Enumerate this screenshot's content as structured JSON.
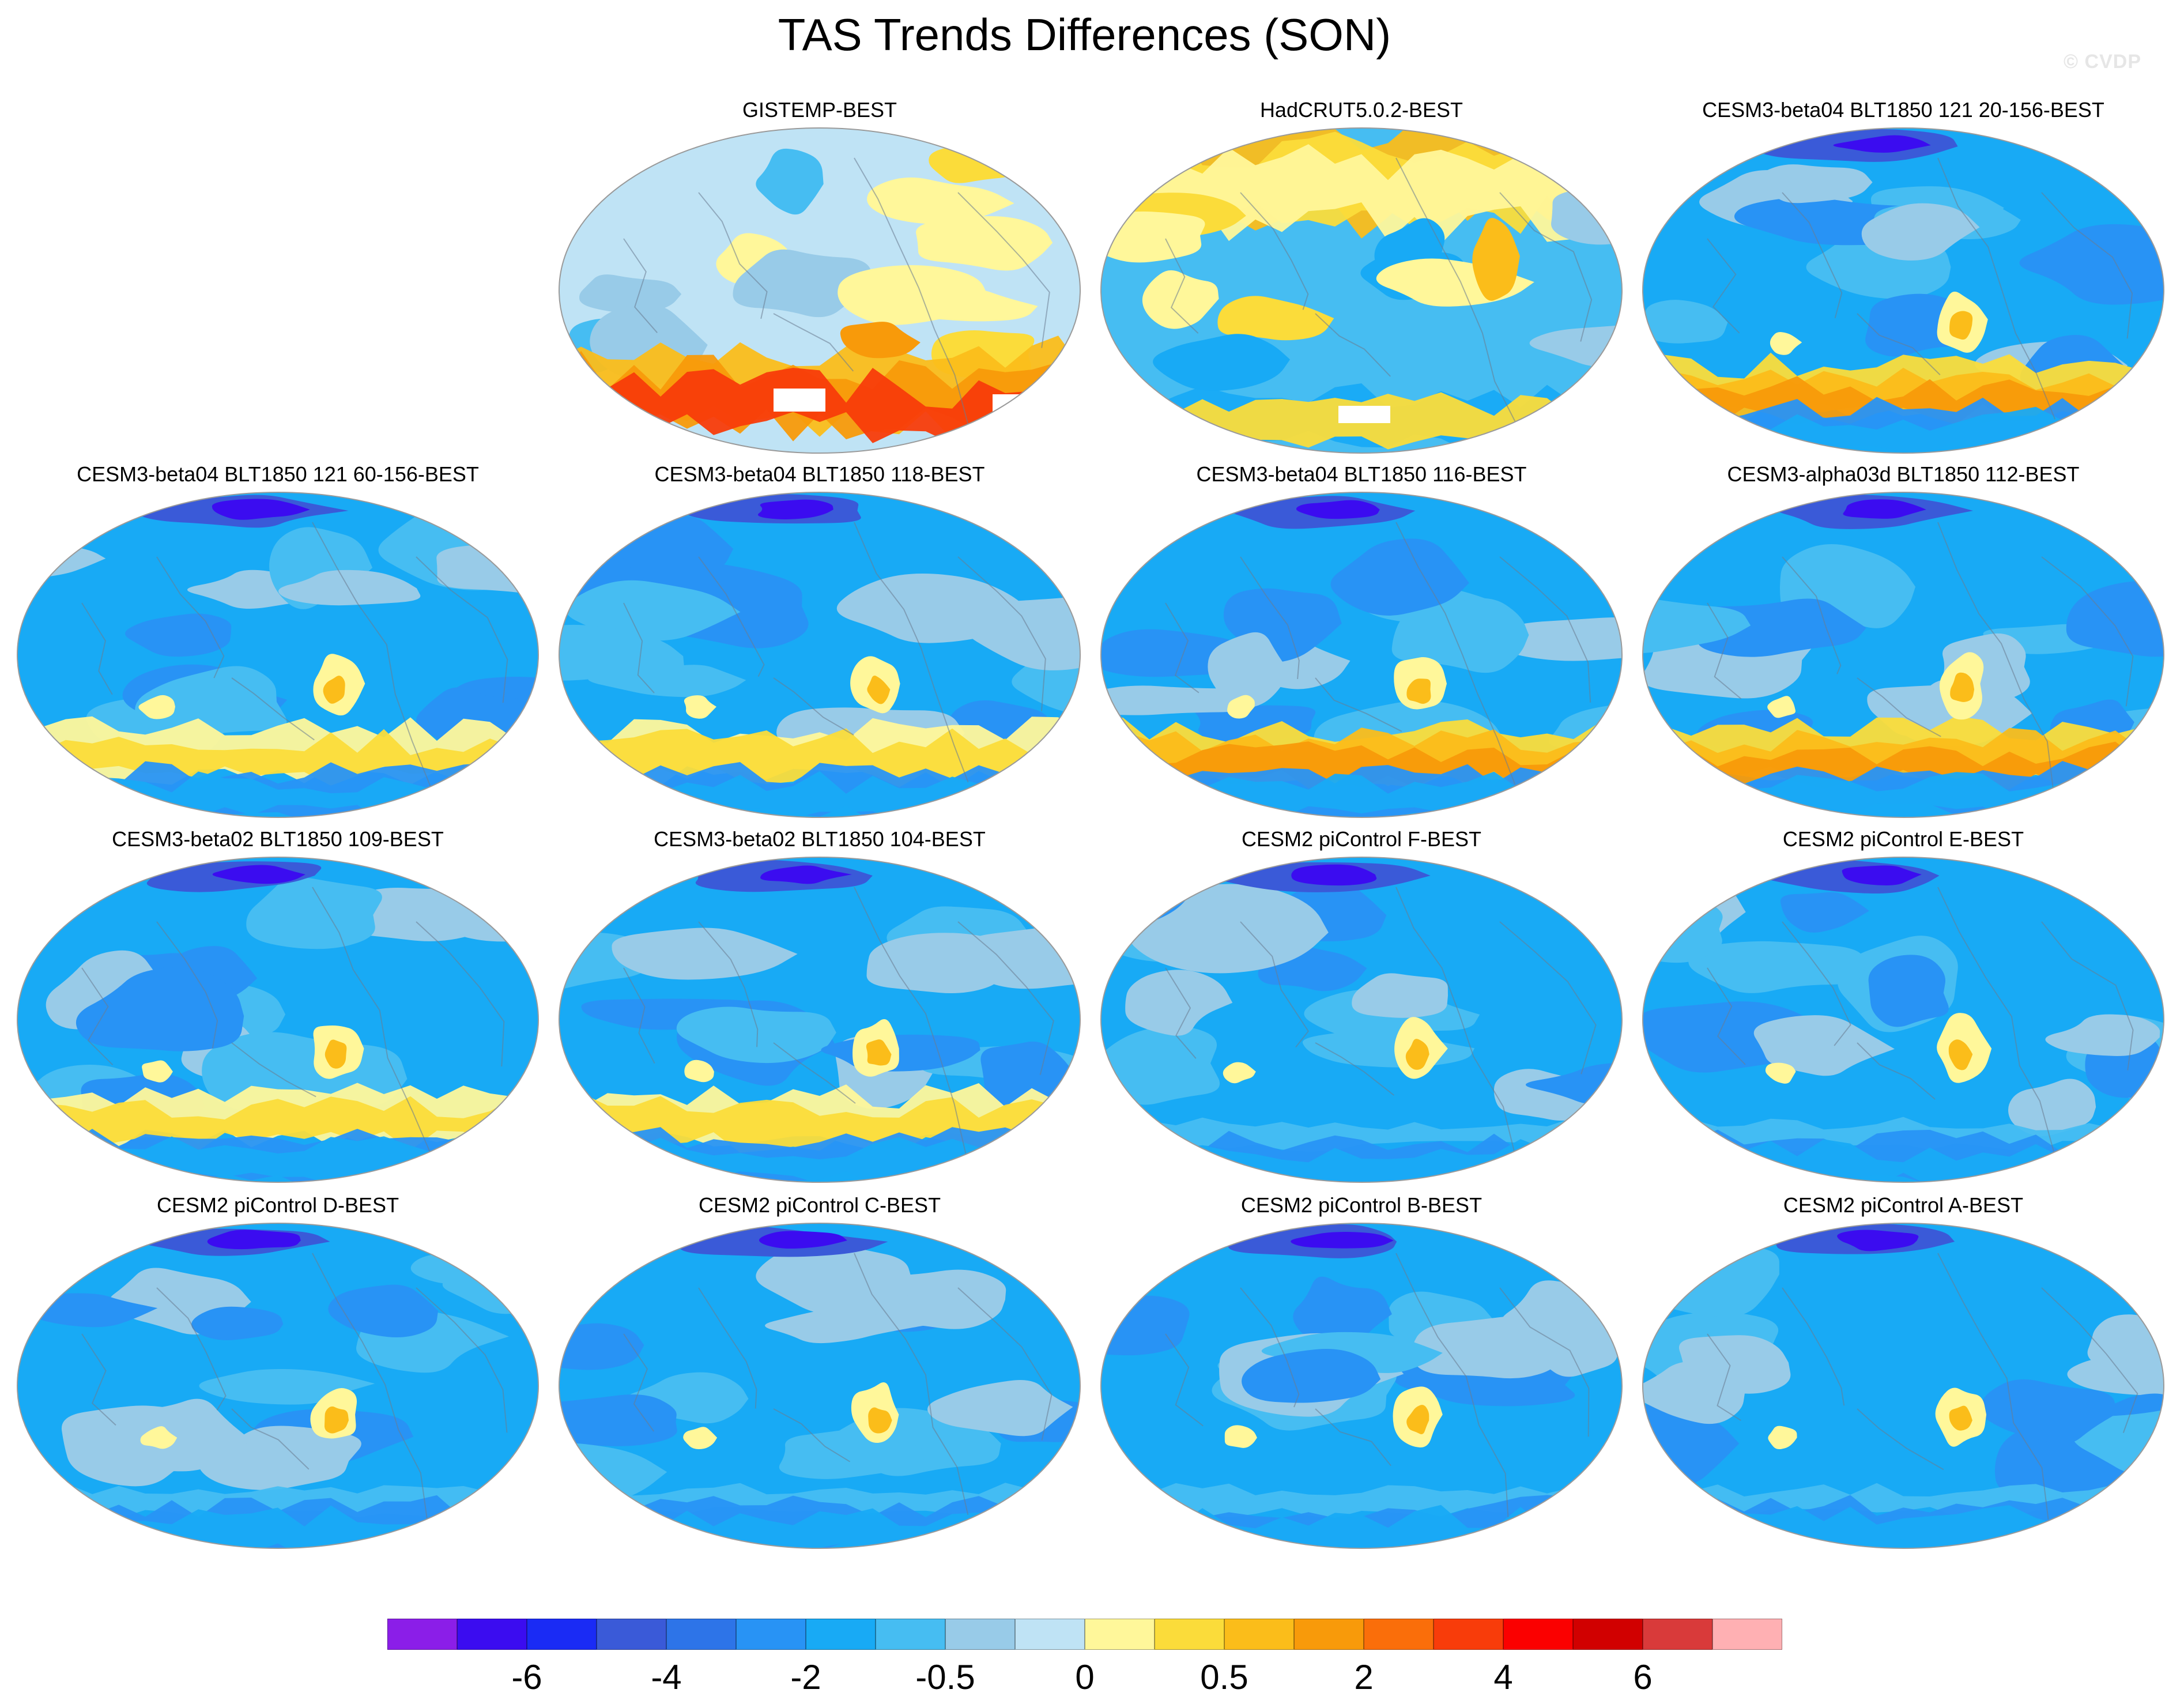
{
  "title": "TAS Trends Differences (SON)",
  "watermark": "© CVDP",
  "chart_data": {
    "type": "heatmap",
    "title": "TAS Trends Differences (SON)",
    "projection": "Robinson (global, Pacific-centered)",
    "panels": [
      {
        "title": "GISTEMP-BEST",
        "pattern": "positive-widespread"
      },
      {
        "title": "HadCRUT5.0.2-BEST",
        "pattern": "mixed-arctic-warm"
      },
      {
        "title": "CESM3-beta04 BLT1850 121 20-156-BEST",
        "pattern": "negative-southern-positive"
      },
      {
        "title": "CESM3-beta04 BLT1850 121 60-156-BEST",
        "pattern": "negative-southern-band"
      },
      {
        "title": "CESM3-beta04 BLT1850 118-BEST",
        "pattern": "negative-weak-band"
      },
      {
        "title": "CESM3-beta04 BLT1850 116-BEST",
        "pattern": "negative-strong-southern-band"
      },
      {
        "title": "CESM3-alpha03d BLT1850 112-BEST",
        "pattern": "negative-strong-southern-band"
      },
      {
        "title": "CESM3-beta02 BLT1850 109-BEST",
        "pattern": "negative-southern-band"
      },
      {
        "title": "CESM3-beta02 BLT1850 104-BEST",
        "pattern": "negative-southern-band"
      },
      {
        "title": "CESM2 piControl F-BEST",
        "pattern": "negative-isolated-blobs"
      },
      {
        "title": "CESM2 piControl E-BEST",
        "pattern": "negative-isolated-blobs"
      },
      {
        "title": "CESM2 piControl D-BEST",
        "pattern": "negative-isolated-blobs"
      },
      {
        "title": "CESM2 piControl C-BEST",
        "pattern": "negative-isolated-blobs"
      },
      {
        "title": "CESM2 piControl B-BEST",
        "pattern": "negative-isolated-blobs"
      },
      {
        "title": "CESM2 piControl A-BEST",
        "pattern": "negative-isolated-blobs"
      }
    ],
    "colorbar": {
      "colors": [
        "#8b1ee8",
        "#3b0cf0",
        "#1a2bf5",
        "#3a5ad8",
        "#2d74e8",
        "#2893f5",
        "#18aaf5",
        "#46bdf2",
        "#98cbe8",
        "#bfe3f5",
        "#fff79a",
        "#fbdc3a",
        "#fbbd1a",
        "#f89a0a",
        "#fa6e0a",
        "#f83c0a",
        "#fb0000",
        "#d10000",
        "#d93a3a",
        "#ffb0b3"
      ],
      "tick_labels": [
        "-6",
        "-4",
        "-2",
        "-0.5",
        "0",
        "0.5",
        "2",
        "4",
        "6"
      ],
      "tick_boundary_index": [
        2,
        4,
        6,
        8,
        10,
        12,
        14,
        16,
        18
      ]
    }
  }
}
